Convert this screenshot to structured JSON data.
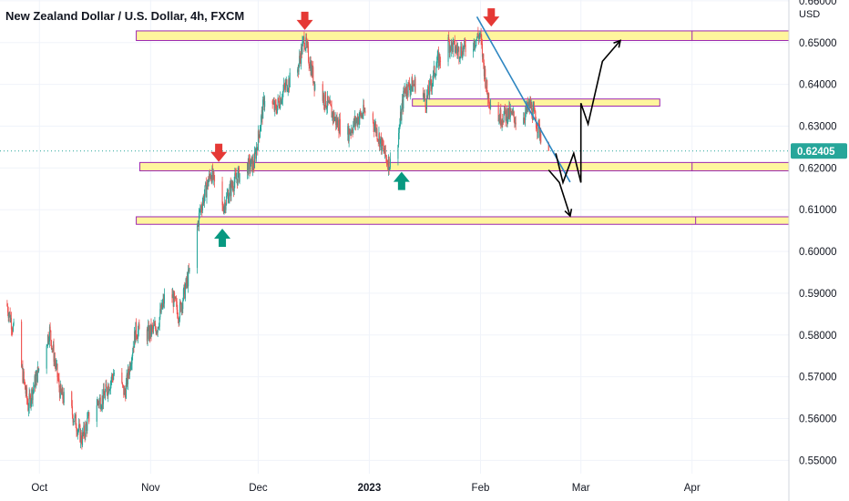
{
  "chart_data": {
    "type": "candlestick",
    "title": "New Zealand Dollar / U.S. Dollar, 4h, FXCM",
    "currency": "USD",
    "x_ticks": [
      {
        "label": "Oct",
        "date": "2022-10-01",
        "bold": false
      },
      {
        "label": "Nov",
        "date": "2022-11-01",
        "bold": false
      },
      {
        "label": "Dec",
        "date": "2022-12-01",
        "bold": false
      },
      {
        "label": "2023",
        "date": "2023-01-01",
        "bold": true
      },
      {
        "label": "Feb",
        "date": "2023-02-01",
        "bold": false
      },
      {
        "label": "Mar",
        "date": "2023-03-01",
        "bold": false
      },
      {
        "label": "Apr",
        "date": "2023-04-01",
        "bold": false
      }
    ],
    "x_range": [
      "2022-09-20",
      "2023-04-28"
    ],
    "y_ticks": [
      "0.55000",
      "0.56000",
      "0.57000",
      "0.58000",
      "0.59000",
      "0.60000",
      "0.61000",
      "0.62000",
      "0.63000",
      "0.64000",
      "0.65000",
      "0.66000"
    ],
    "ylim": [
      0.5468,
      0.6602
    ],
    "current_price": {
      "value": 0.62405,
      "label": "0.62405",
      "color": "#26a69a"
    },
    "colors": {
      "up": "#26a69a",
      "down": "#ef5350",
      "zone_fill": "#fff59d",
      "zone_border": "#9c27b0",
      "trendline": "#2e86c1",
      "arrow_up": "#089981",
      "arrow_down": "#e53935",
      "projection": "#000000"
    },
    "price_path": [
      [
        "2022-09-22",
        0.5875
      ],
      [
        "2022-09-25",
        0.578
      ],
      [
        "2022-09-28",
        0.563
      ],
      [
        "2022-10-01",
        0.572
      ],
      [
        "2022-10-04",
        0.581
      ],
      [
        "2022-10-07",
        0.566
      ],
      [
        "2022-10-10",
        0.562
      ],
      [
        "2022-10-13",
        0.555
      ],
      [
        "2022-10-16",
        0.563
      ],
      [
        "2022-10-19",
        0.565
      ],
      [
        "2022-10-22",
        0.571
      ],
      [
        "2022-10-25",
        0.566
      ],
      [
        "2022-10-28",
        0.581
      ],
      [
        "2022-10-31",
        0.58
      ],
      [
        "2022-11-03",
        0.582
      ],
      [
        "2022-11-06",
        0.592
      ],
      [
        "2022-11-09",
        0.585
      ],
      [
        "2022-11-12",
        0.595
      ],
      [
        "2022-11-15",
        0.61
      ],
      [
        "2022-11-18",
        0.619
      ],
      [
        "2022-11-21",
        0.61
      ],
      [
        "2022-11-24",
        0.616
      ],
      [
        "2022-11-27",
        0.62
      ],
      [
        "2022-11-30",
        0.621
      ],
      [
        "2022-12-03",
        0.637
      ],
      [
        "2022-12-06",
        0.634
      ],
      [
        "2022-12-09",
        0.64
      ],
      [
        "2022-12-12",
        0.643
      ],
      [
        "2022-12-14",
        0.651
      ],
      [
        "2022-12-17",
        0.64
      ],
      [
        "2022-12-20",
        0.636
      ],
      [
        "2022-12-23",
        0.631
      ],
      [
        "2022-12-26",
        0.628
      ],
      [
        "2022-12-29",
        0.632
      ],
      [
        "2023-01-01",
        0.634
      ],
      [
        "2023-01-04",
        0.627
      ],
      [
        "2023-01-06",
        0.622
      ],
      [
        "2023-01-08",
        0.62
      ],
      [
        "2023-01-11",
        0.639
      ],
      [
        "2023-01-14",
        0.64
      ],
      [
        "2023-01-17",
        0.636
      ],
      [
        "2023-01-20",
        0.645
      ],
      [
        "2023-01-23",
        0.65
      ],
      [
        "2023-01-26",
        0.648
      ],
      [
        "2023-01-29",
        0.649
      ],
      [
        "2023-02-01",
        0.652
      ],
      [
        "2023-02-03",
        0.638
      ],
      [
        "2023-02-06",
        0.632
      ],
      [
        "2023-02-09",
        0.633
      ],
      [
        "2023-02-12",
        0.631
      ],
      [
        "2023-02-15",
        0.635
      ],
      [
        "2023-02-18",
        0.628
      ],
      [
        "2023-02-20",
        0.6245
      ]
    ],
    "zones": [
      {
        "date_start": "2022-10-28",
        "date_end": "2023-04-28",
        "low": 0.6505,
        "high": 0.6528,
        "split_date": "2023-04-01"
      },
      {
        "date_start": "2023-01-13",
        "date_end": "2023-03-23",
        "low": 0.6348,
        "high": 0.6365
      },
      {
        "date_start": "2022-10-29",
        "date_end": "2023-04-28",
        "low": 0.6193,
        "high": 0.6213,
        "split_date": "2023-04-01"
      },
      {
        "date_start": "2022-10-28",
        "date_end": "2023-04-28",
        "low": 0.6065,
        "high": 0.6083,
        "split_date": "2023-04-02"
      }
    ],
    "trendline": [
      [
        "2023-01-31",
        0.6562
      ],
      [
        "2023-02-26",
        0.6166
      ]
    ],
    "markers": [
      {
        "type": "down",
        "date": "2022-11-20",
        "price": 0.6234
      },
      {
        "type": "down",
        "date": "2022-12-14",
        "price": 0.655
      },
      {
        "type": "down",
        "date": "2023-02-04",
        "price": 0.6558
      },
      {
        "type": "up",
        "date": "2022-11-21",
        "price": 0.6035
      },
      {
        "type": "up",
        "date": "2023-01-10",
        "price": 0.6171
      }
    ],
    "projections": [
      [
        [
          "2023-02-22",
          0.6235
        ],
        [
          "2023-02-24",
          0.6165
        ],
        [
          "2023-02-27",
          0.6235
        ],
        [
          "2023-02-29",
          0.6165
        ],
        [
          "2023-03-01",
          0.6355
        ],
        [
          "2023-03-03",
          0.6305
        ],
        [
          "2023-03-07",
          0.6455
        ],
        [
          "2023-03-12",
          0.6505
        ]
      ],
      [
        [
          "2023-02-20",
          0.6195
        ],
        [
          "2023-02-23",
          0.6165
        ],
        [
          "2023-02-26",
          0.6085
        ]
      ]
    ]
  }
}
